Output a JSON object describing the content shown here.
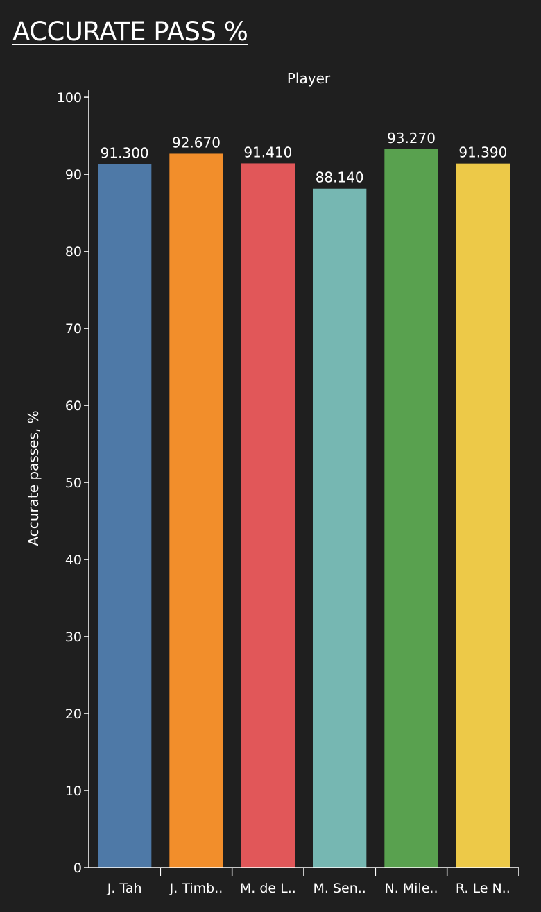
{
  "title": "ACCURATE PASS %",
  "chart_data": {
    "type": "bar",
    "xlabel": "Player",
    "ylabel": "Accurate passes, %",
    "ylim": [
      0,
      101
    ],
    "yticks": [
      0,
      10,
      20,
      30,
      40,
      50,
      60,
      70,
      80,
      90,
      100
    ],
    "categories": [
      "J. Tah",
      "J. Timb..",
      "M. de L..",
      "M. Sen..",
      "N. Mile..",
      "R. Le N.."
    ],
    "values": [
      91.3,
      92.67,
      91.41,
      88.14,
      93.27,
      91.39
    ],
    "data_labels": [
      "91.300",
      "92.670",
      "91.410",
      "88.140",
      "93.270",
      "91.390"
    ],
    "colors": [
      "#4e79a7",
      "#f28e2b",
      "#e15759",
      "#76b7b2",
      "#59a14f",
      "#edc948"
    ],
    "background": "#1f1f1f",
    "grid": false,
    "legend": "none"
  }
}
